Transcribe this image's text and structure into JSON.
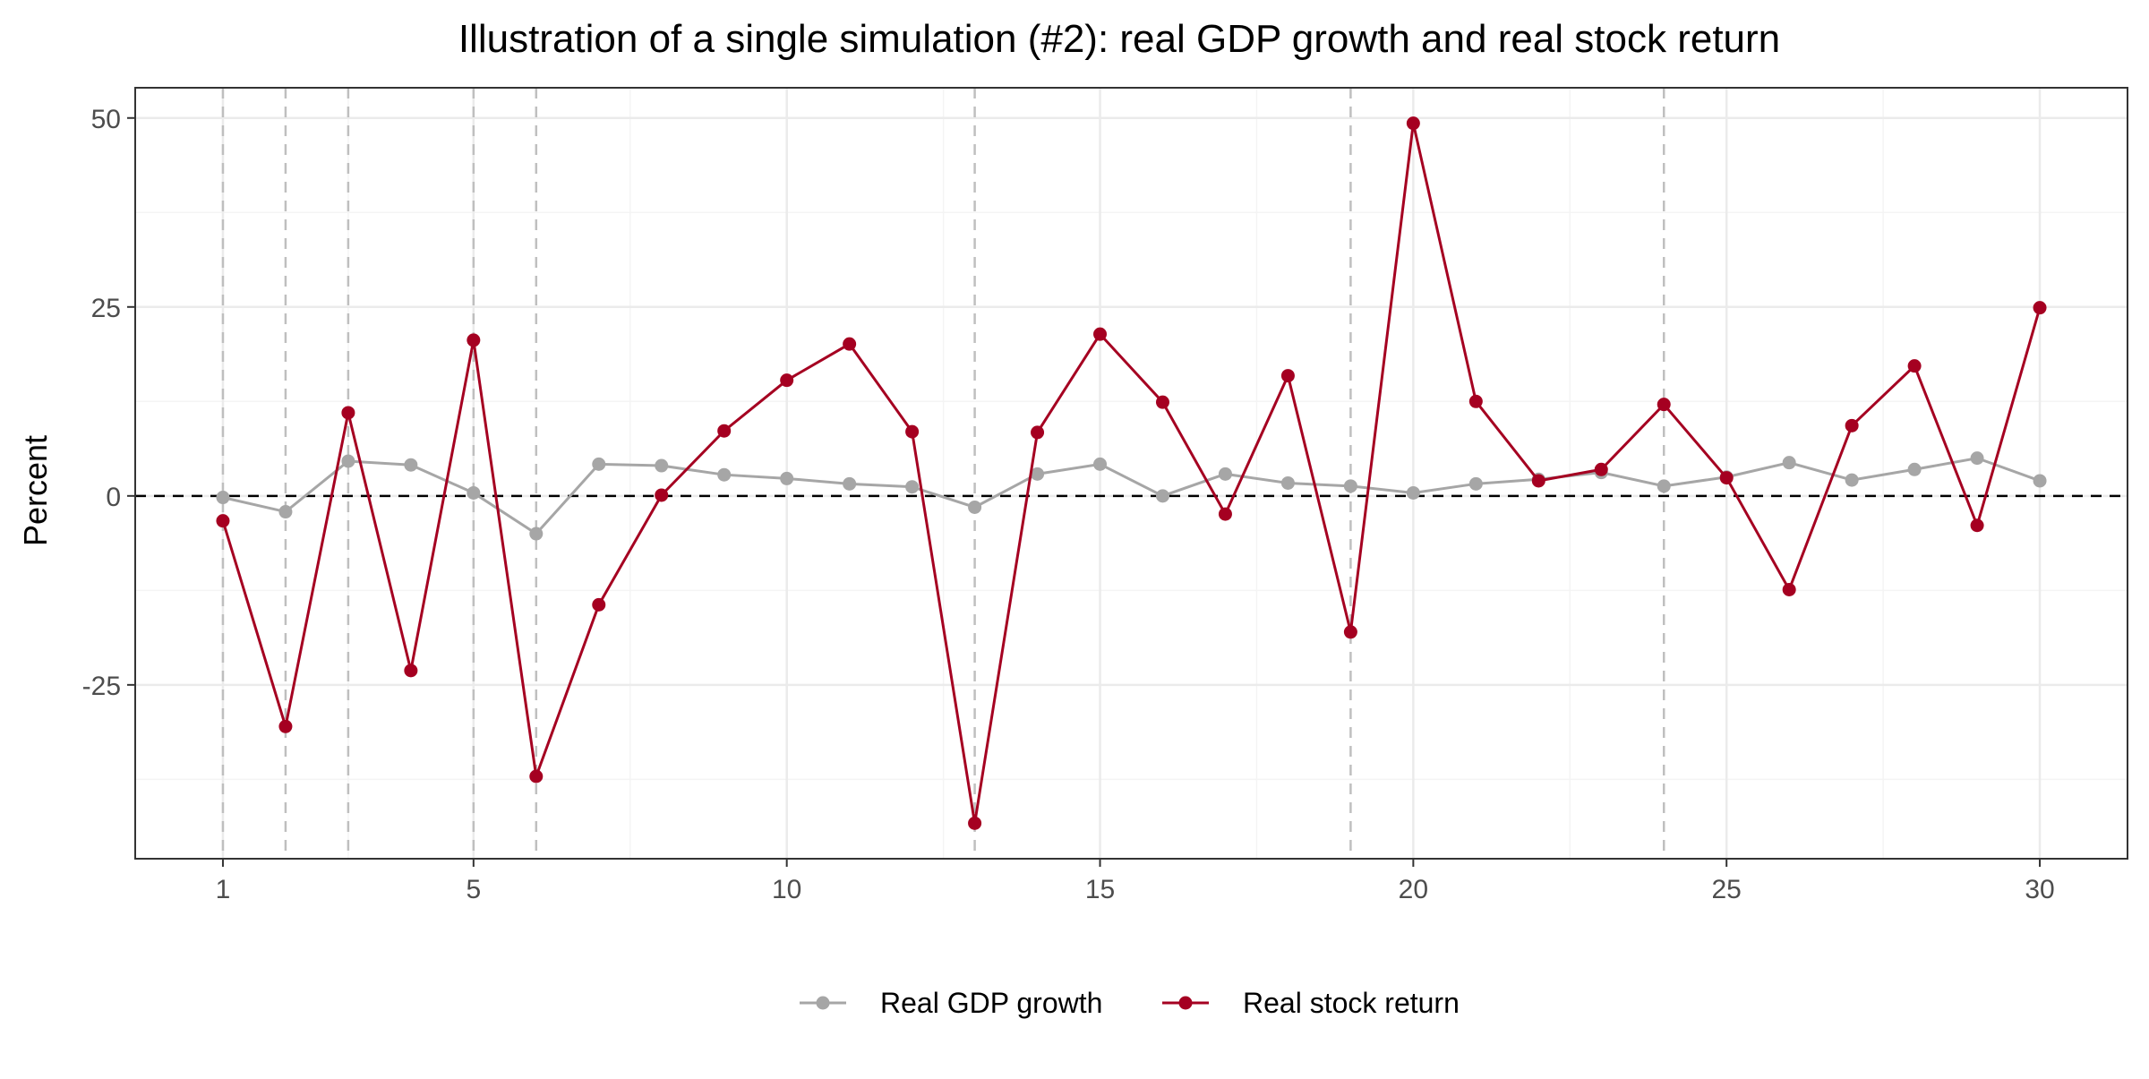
{
  "chart_data": {
    "type": "line",
    "title": "Illustration of a single simulation (#2): real GDP growth and real stock return",
    "xlabel": "",
    "ylabel": "Percent",
    "x": [
      1,
      2,
      3,
      4,
      5,
      6,
      7,
      8,
      9,
      10,
      11,
      12,
      13,
      14,
      15,
      16,
      17,
      18,
      19,
      20,
      21,
      22,
      23,
      24,
      25,
      26,
      27,
      28,
      29,
      30
    ],
    "xlim": [
      -0.4,
      31.4
    ],
    "ylim": [
      -48,
      54
    ],
    "x_ticks": [
      1,
      5,
      10,
      15,
      20,
      25,
      30
    ],
    "x_tick_labels": [
      "1",
      "5",
      "10",
      "15",
      "20",
      "25",
      "30"
    ],
    "y_ticks": [
      50,
      25,
      0,
      -25
    ],
    "y_tick_labels": [
      "50",
      "25",
      "0",
      "-25"
    ],
    "grid": true,
    "legend_position": "bottom",
    "reference_line_y": 0,
    "highlight_x": [
      1,
      2,
      3,
      5,
      6,
      13,
      19,
      24
    ],
    "series": [
      {
        "name": "Real GDP growth",
        "color": "#a6a6a6",
        "values": [
          -0.2,
          -2.1,
          4.6,
          4.1,
          0.4,
          -5.0,
          4.2,
          4.0,
          2.8,
          2.3,
          1.6,
          1.2,
          -1.5,
          2.9,
          4.2,
          0.0,
          2.9,
          1.7,
          1.3,
          0.4,
          1.6,
          2.2,
          3.1,
          1.3,
          2.5,
          4.4,
          2.1,
          3.5,
          5.0,
          2.0
        ]
      },
      {
        "name": "Real stock return",
        "color": "#a50021",
        "values": [
          -3.3,
          -30.5,
          11.0,
          -23.1,
          20.6,
          -37.1,
          -14.4,
          0.1,
          8.6,
          15.3,
          20.1,
          8.5,
          -43.3,
          8.4,
          21.4,
          12.4,
          -2.4,
          15.9,
          -18.0,
          49.3,
          12.5,
          2.0,
          3.5,
          12.1,
          2.4,
          -12.4,
          9.3,
          17.2,
          -3.9,
          24.9
        ]
      }
    ]
  },
  "colors": {
    "panel_border": "#333333",
    "grid_major": "#ebebeb",
    "grid_minor": "#f4f4f4",
    "highlight_line": "#bfbfbf",
    "zero_line": "#000000"
  }
}
